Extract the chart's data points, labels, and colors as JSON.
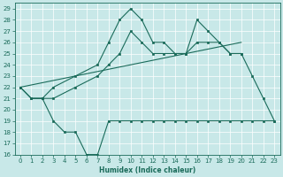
{
  "xlabel": "Humidex (Indice chaleur)",
  "xlim": [
    -0.5,
    23.5
  ],
  "ylim": [
    16,
    29.5
  ],
  "yticks": [
    16,
    17,
    18,
    19,
    20,
    21,
    22,
    23,
    24,
    25,
    26,
    27,
    28,
    29
  ],
  "xticks": [
    0,
    1,
    2,
    3,
    4,
    5,
    6,
    7,
    8,
    9,
    10,
    11,
    12,
    13,
    14,
    15,
    16,
    17,
    18,
    19,
    20,
    21,
    22,
    23
  ],
  "bg_color": "#c8e8e8",
  "line_color": "#1a6b5a",
  "line1_x": [
    0,
    1,
    2,
    3,
    5,
    7,
    8,
    9,
    10,
    11,
    12,
    13,
    14,
    15,
    16,
    17,
    18,
    19,
    20,
    21,
    22,
    23
  ],
  "line1_y": [
    22,
    21,
    21,
    22,
    23,
    24,
    26,
    28,
    29,
    28,
    26,
    26,
    25,
    25,
    28,
    27,
    26,
    25,
    25,
    23,
    21,
    19
  ],
  "line2_x": [
    0,
    1,
    2,
    3,
    5,
    7,
    8,
    9,
    10,
    11,
    12,
    13,
    14,
    15,
    16,
    17,
    18,
    19,
    20
  ],
  "line2_y": [
    22,
    21,
    21,
    21,
    22,
    23,
    24,
    25,
    27,
    26,
    25,
    25,
    25,
    25,
    26,
    26,
    26,
    25,
    25
  ],
  "line3_x": [
    1,
    2,
    3,
    4,
    5,
    6,
    7,
    8,
    9,
    10,
    11,
    12,
    13,
    14,
    15,
    16,
    17,
    18,
    19,
    20,
    21,
    22,
    23
  ],
  "line3_y": [
    21,
    21,
    19,
    18,
    18,
    16,
    16,
    19,
    19,
    19,
    19,
    19,
    19,
    19,
    19,
    19,
    19,
    19,
    19,
    19,
    19,
    19,
    19
  ],
  "trend_x": [
    0,
    20
  ],
  "trend_y": [
    22,
    26
  ]
}
